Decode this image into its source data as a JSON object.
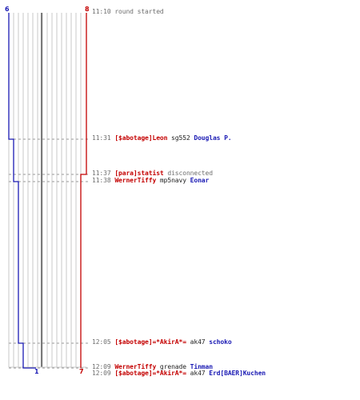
{
  "counters": {
    "blue_top": "6",
    "red_top": "8",
    "blue_bottom": "1",
    "red_bottom": "7"
  },
  "colors": {
    "team_blue": "#1a1ab4",
    "team_red": "#c40000",
    "time_text": "#6e6e6e",
    "grid_line": "#c8c8c8",
    "center_line": "#7a7a7a",
    "dashed_connector": "#9a9a9a"
  },
  "events": [
    {
      "time": "11:10",
      "parts": [
        {
          "text": "round started",
          "style": "msg"
        }
      ]
    },
    {
      "time": "11:31",
      "parts": [
        {
          "text": "[$abotage]Leon",
          "style": "red"
        },
        {
          "text": " sg552 ",
          "style": "plain"
        },
        {
          "text": "Douglas P.",
          "style": "blue"
        }
      ]
    },
    {
      "time": "11:37",
      "parts": [
        {
          "text": "[para]statist",
          "style": "red"
        },
        {
          "text": " disconnected",
          "style": "msg"
        }
      ]
    },
    {
      "time": "11:38",
      "parts": [
        {
          "text": "WernerTiffy",
          "style": "red"
        },
        {
          "text": " mp5navy ",
          "style": "plain"
        },
        {
          "text": "Eonar",
          "style": "blue"
        }
      ]
    },
    {
      "time": "12:05",
      "parts": [
        {
          "text": "[$abotage]=*AkirA*=",
          "style": "red"
        },
        {
          "text": " ak47 ",
          "style": "plain"
        },
        {
          "text": "schoko",
          "style": "blue"
        }
      ]
    },
    {
      "time": "12:09",
      "parts": [
        {
          "text": "WernerTiffy",
          "style": "red"
        },
        {
          "text": " grenade ",
          "style": "plain"
        },
        {
          "text": "Tinman",
          "style": "blue"
        }
      ]
    },
    {
      "time": "12:09",
      "parts": [
        {
          "text": "[$abotage]=*AkirA*=",
          "style": "red"
        },
        {
          "text": " ak47 ",
          "style": "plain"
        },
        {
          "text": "Erd[BAER]Kuchen",
          "style": "blue"
        }
      ]
    }
  ]
}
